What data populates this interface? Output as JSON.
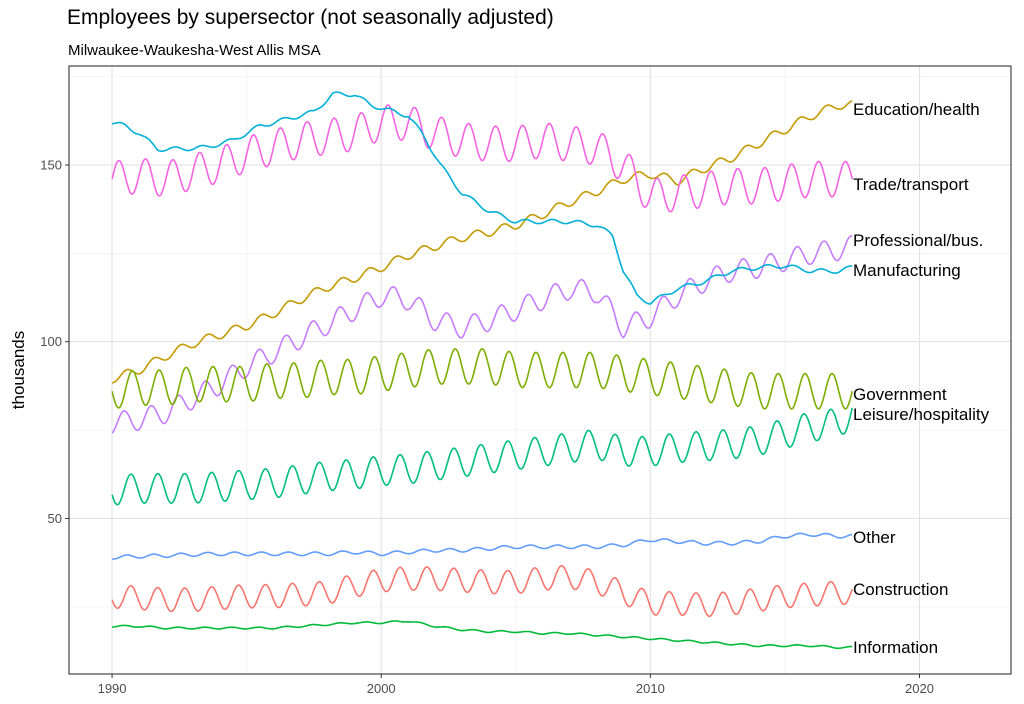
{
  "chart_data": {
    "type": "line",
    "title": "Employees by supersector (not seasonally adjusted)",
    "subtitle": "Milwaukee-Waukesha-West Allis MSA",
    "xlabel": "",
    "ylabel": "thousands",
    "xlim": [
      1988.4,
      2023.4
    ],
    "ylim": [
      6,
      178
    ],
    "x_ticks": [
      1990,
      2000,
      2010,
      2020
    ],
    "y_ticks": [
      50,
      100,
      150
    ],
    "x_tick_labels": [
      "1990",
      "2000",
      "2010",
      "2020"
    ],
    "y_tick_labels": [
      "50",
      "100",
      "150"
    ],
    "grid": true,
    "legend": "direct labels at right end of lines",
    "series": [
      {
        "name": "Education/health",
        "color": "#C49A00",
        "seasonal_amp": 1.2,
        "seasonal_phase": 0.3,
        "x": [
          1990,
          1991,
          1992,
          1993,
          1994,
          1995,
          1996,
          1997,
          1998,
          1999,
          2000,
          2001,
          2002,
          2003,
          2004,
          2005,
          2006,
          2007,
          2008,
          2009,
          2010,
          2011,
          2012,
          2013,
          2014,
          2015,
          2016,
          2017,
          2017.5
        ],
        "y": [
          89.5,
          92,
          96,
          99.5,
          102,
          104.5,
          108,
          112,
          115.5,
          118,
          121,
          124.5,
          127,
          129.5,
          131,
          133,
          136,
          139.5,
          142.5,
          146,
          147.5,
          145.5,
          149,
          152,
          156,
          160,
          164,
          167,
          167
        ]
      },
      {
        "name": "Trade/transport",
        "color": "#F564E3",
        "seasonal_amp": 5,
        "seasonal_phase": 0,
        "x": [
          1990,
          1991,
          1992,
          1993,
          1994,
          1995,
          1996,
          1997,
          1998,
          1999,
          2000,
          2001,
          2002,
          2003,
          2004,
          2005,
          2006,
          2007,
          2008,
          2009,
          2010,
          2011,
          2012,
          2013,
          2014,
          2015,
          2016,
          2017,
          2017.5
        ],
        "y": [
          146,
          147,
          146,
          148,
          150,
          153,
          155,
          157,
          158,
          159,
          162,
          162,
          159,
          157,
          156,
          156,
          157,
          156,
          155,
          150,
          141,
          142,
          143,
          144,
          144,
          145,
          146,
          146,
          146
        ]
      },
      {
        "name": "Professional/bus.",
        "color": "#C77CFF",
        "seasonal_amp": 3,
        "seasonal_phase": 0.2,
        "x": [
          1990,
          1991,
          1992,
          1993,
          1994,
          1995,
          1996,
          1997,
          1998,
          1999,
          2000,
          2001,
          2002,
          2003,
          2004,
          2005,
          2006,
          2007,
          2008,
          2009,
          2010,
          2011,
          2012,
          2013,
          2014,
          2015,
          2016,
          2017,
          2017.5
        ],
        "y": [
          77,
          78,
          80,
          84,
          88,
          93,
          97,
          101,
          105,
          109,
          113,
          112,
          106,
          104,
          106,
          109,
          112,
          115,
          114,
          104,
          107,
          113,
          117,
          120,
          121,
          123,
          125,
          126,
          127
        ]
      },
      {
        "name": "Manufacturing",
        "color": "#00B0D8",
        "seasonal_amp": 0.6,
        "seasonal_phase": 0.1,
        "x": [
          1990,
          1990.5,
          1991,
          1991.7,
          1992.5,
          1993.5,
          1994.5,
          1995.5,
          1996.5,
          1997.5,
          1998.2,
          1999,
          1999.6,
          2000.5,
          2001,
          2001.6,
          2002.2,
          2003,
          2004,
          2005,
          2006,
          2007,
          2008,
          2008.6,
          2009,
          2009.5,
          2010,
          2010.5,
          2011,
          2012,
          2013,
          2014,
          2015,
          2016,
          2017,
          2017.5
        ],
        "y": [
          162,
          161,
          159,
          154.5,
          154.5,
          155,
          157,
          161,
          163,
          165,
          170,
          170,
          167,
          165,
          164,
          158,
          150,
          142,
          137,
          134,
          134,
          134,
          133,
          130,
          120,
          113,
          111,
          113,
          115,
          117,
          120,
          121,
          121.5,
          120,
          120,
          121
        ]
      },
      {
        "name": "Government",
        "color": "#7CAE00",
        "seasonal_amp": 5,
        "seasonal_phase": 0.5,
        "x": [
          1990,
          1991,
          1992,
          1993,
          1994,
          1995,
          1996,
          1997,
          1998,
          1999,
          2000,
          2001,
          2002,
          2003,
          2004,
          2005,
          2006,
          2007,
          2008,
          2009,
          2010,
          2011,
          2012,
          2013,
          2014,
          2015,
          2016,
          2017,
          2017.5
        ],
        "y": [
          86,
          87,
          87,
          88,
          88,
          88,
          89,
          89,
          90,
          90,
          91,
          92,
          93,
          93,
          93,
          92,
          92,
          92,
          92,
          91,
          90,
          89,
          88,
          87,
          86,
          86,
          86,
          86,
          86
        ]
      },
      {
        "name": "Leisure/hospitality",
        "color": "#00BF7D",
        "seasonal_amp": 4.2,
        "seasonal_phase": 0.45,
        "x": [
          1990,
          1991,
          1992,
          1993,
          1994,
          1995,
          1996,
          1997,
          1998,
          1999,
          2000,
          2001,
          2002,
          2003,
          2004,
          2005,
          2006,
          2007,
          2008,
          2009,
          2010,
          2011,
          2012,
          2013,
          2014,
          2015,
          2016,
          2017,
          2017.5
        ],
        "y": [
          58,
          58.5,
          58.5,
          58.5,
          59,
          59.5,
          60,
          61,
          62,
          62.5,
          63.5,
          64,
          65,
          66,
          67,
          68,
          69,
          70,
          71,
          69,
          69,
          70,
          70.5,
          71,
          72,
          74,
          76,
          77,
          80
        ]
      },
      {
        "name": "Other",
        "color": "#619CFF",
        "seasonal_amp": 0.5,
        "seasonal_phase": 0.3,
        "x": [
          1990,
          1991,
          1992,
          1993,
          1994,
          1995,
          1996,
          1997,
          1998,
          1999,
          2000,
          2001,
          2002,
          2003,
          2004,
          2005,
          2006,
          2007,
          2008,
          2009,
          2010,
          2011,
          2012,
          2013,
          2014,
          2015,
          2016,
          2017,
          2017.5
        ],
        "y": [
          39,
          39.3,
          39.5,
          39.8,
          40,
          40,
          40,
          40,
          40,
          40.5,
          40,
          40.5,
          41,
          41,
          41.5,
          42,
          42,
          42,
          42,
          42.5,
          44,
          43.5,
          43,
          43,
          43.5,
          45,
          45.5,
          45,
          45
        ]
      },
      {
        "name": "Construction",
        "color": "#F8766D",
        "seasonal_amp": 3.3,
        "seasonal_phase": 0.45,
        "x": [
          1990,
          1991,
          1992,
          1993,
          1994,
          1995,
          1996,
          1997,
          1998,
          1999,
          2000,
          2001,
          2002,
          2003,
          2004,
          2005,
          2006,
          2007,
          2008,
          2009,
          2010,
          2011,
          2012,
          2013,
          2014,
          2015,
          2016,
          2017,
          2017.5
        ],
        "y": [
          28,
          27.5,
          27,
          27,
          27.5,
          28,
          28,
          28.5,
          29,
          31,
          32.5,
          33,
          33,
          32.5,
          32,
          32,
          33,
          33.5,
          32,
          29,
          26,
          26,
          25.5,
          26,
          27,
          28,
          28.5,
          29,
          29
        ]
      },
      {
        "name": "Information",
        "color": "#00BA38",
        "seasonal_amp": 0.25,
        "seasonal_phase": 0.2,
        "x": [
          1990,
          1991,
          1992,
          1993,
          1994,
          1995,
          1996,
          1997,
          1998,
          1999,
          2000,
          2001,
          2002,
          2003,
          2004,
          2005,
          2006,
          2007,
          2008,
          2009,
          2010,
          2011,
          2012,
          2013,
          2014,
          2015,
          2016,
          2017,
          2017.5
        ],
        "y": [
          19.5,
          19.5,
          19,
          19,
          19,
          19,
          19,
          19.5,
          20,
          20.5,
          20.5,
          21,
          19.5,
          18.5,
          18,
          18,
          17.5,
          17.5,
          17,
          16.5,
          16,
          15.5,
          15,
          14.5,
          14,
          14,
          14,
          13.5,
          13.5
        ]
      }
    ]
  }
}
